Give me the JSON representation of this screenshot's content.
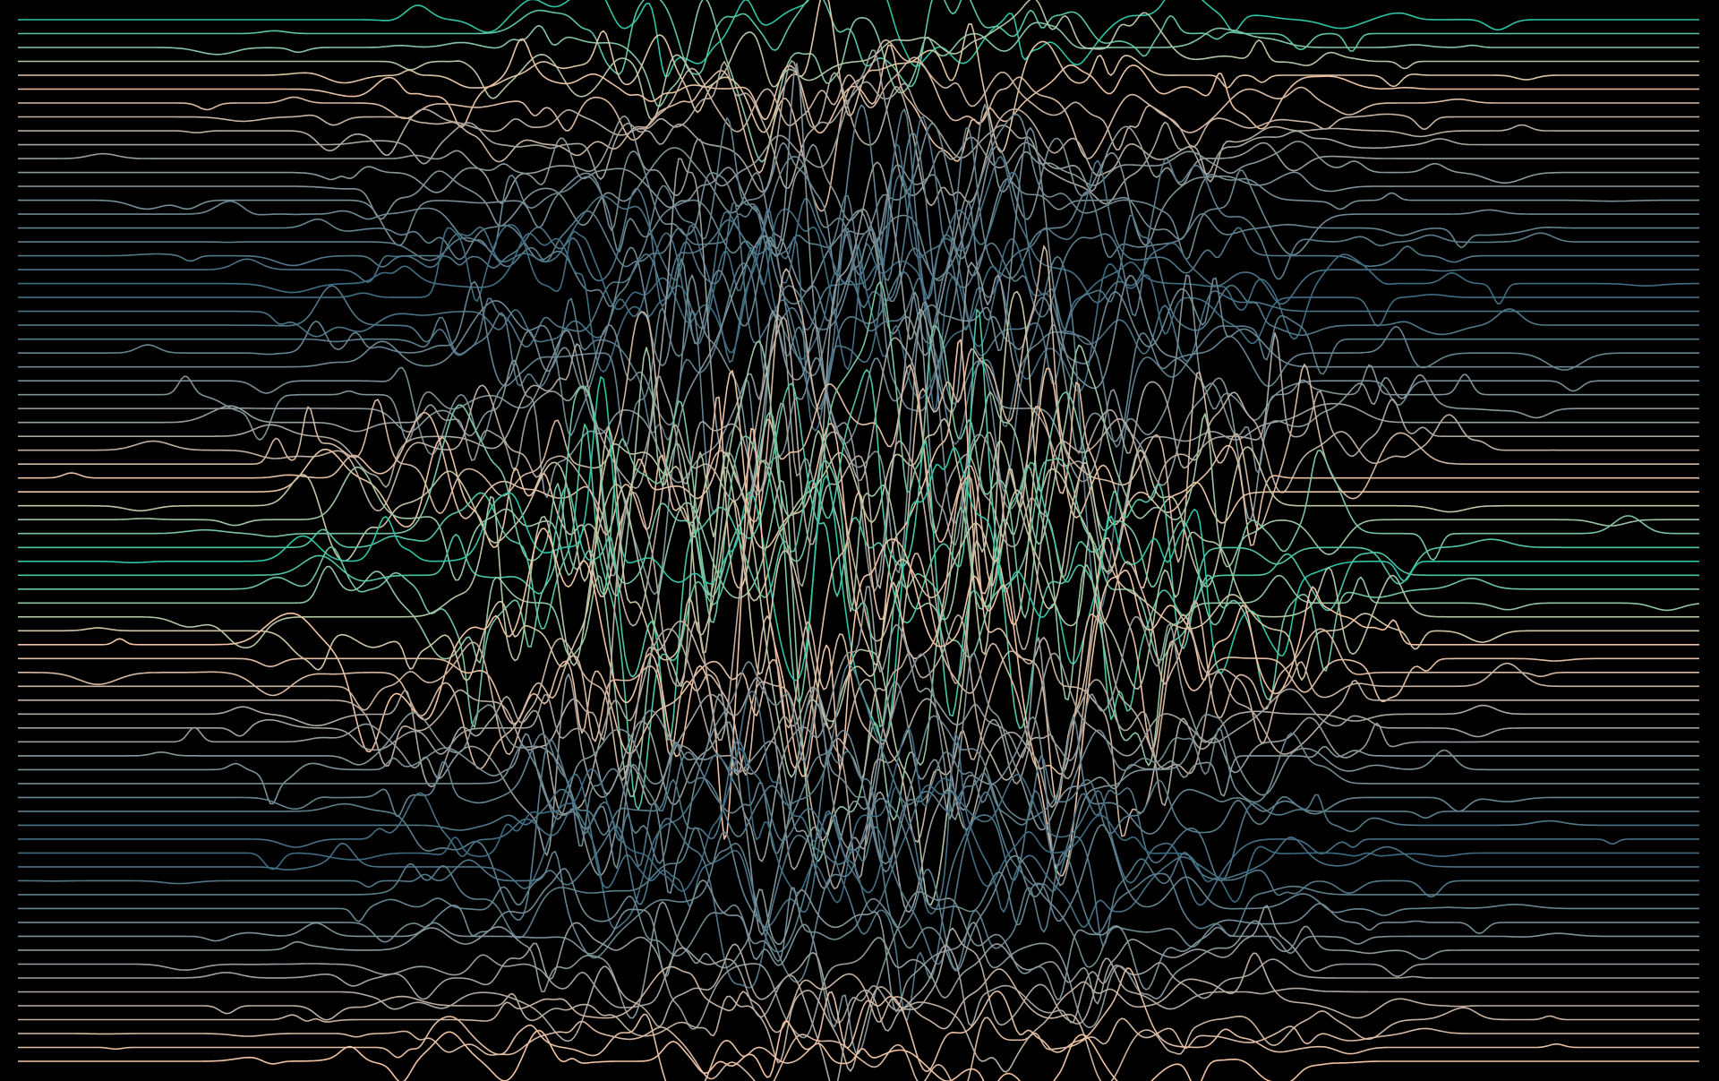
{
  "artwork": {
    "background": "#000000",
    "palette": [
      "#2ec4a5",
      "#f2c4a4",
      "#8c9a9c",
      "#3b6b82"
    ],
    "rows": 76
  }
}
